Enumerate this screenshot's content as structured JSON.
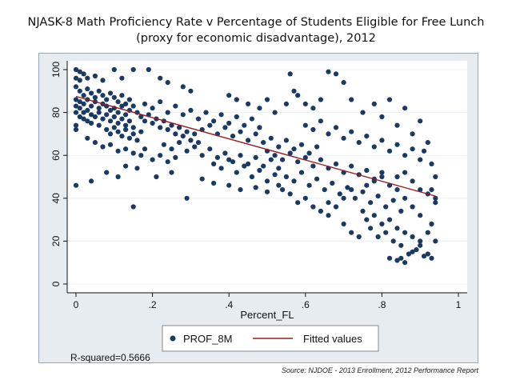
{
  "title_line1": "NJASK-8 Math Proficiency Rate v Percentage of Students Eligible for Free Lunch",
  "title_line2": "(proxy for economic disadvantage), 2012",
  "r_squared": "R-squared=0.5666",
  "source": "Source: NJDOE - 2013 Enrollment, 2012 Performance Report",
  "colors": {
    "panel_bg": "#e7ecf0",
    "plot_bg": "#ffffff",
    "marker": "#1a3a63",
    "fit_line": "#9b1c1c"
  },
  "chart_data": {
    "type": "scatter",
    "title": "NJASK-8 Math Proficiency Rate v Percentage of Students Eligible for Free Lunch (proxy for economic disadvantage), 2012",
    "xlabel": "Percent_FL",
    "ylabel": "",
    "xlim": [
      0,
      1
    ],
    "ylim": [
      0,
      100
    ],
    "xticks": [
      0,
      0.2,
      0.4,
      0.6,
      0.8,
      1
    ],
    "xtick_labels": [
      "0",
      ".2",
      ".4",
      ".6",
      ".8",
      "1"
    ],
    "yticks": [
      0,
      20,
      40,
      60,
      80,
      100
    ],
    "ytick_labels": [
      "0",
      "20",
      "40",
      "60",
      "80",
      "100"
    ],
    "grid": "horizontal",
    "legend_position": "bottom",
    "series": [
      {
        "name": "PROF_8M",
        "kind": "scatter",
        "points": [
          [
            0.0,
            100
          ],
          [
            0.01,
            99
          ],
          [
            0.02,
            98
          ],
          [
            0.0,
            96
          ],
          [
            0.01,
            95
          ],
          [
            0.03,
            96
          ],
          [
            0.05,
            97
          ],
          [
            0.07,
            95
          ],
          [
            0.1,
            100
          ],
          [
            0.12,
            96
          ],
          [
            0.15,
            100
          ],
          [
            0.19,
            100
          ],
          [
            0.22,
            96
          ],
          [
            0.24,
            94
          ],
          [
            0.28,
            92
          ],
          [
            0.3,
            90
          ],
          [
            0.0,
            92
          ],
          [
            0.01,
            90
          ],
          [
            0.02,
            88
          ],
          [
            0.03,
            91
          ],
          [
            0.04,
            89
          ],
          [
            0.05,
            87
          ],
          [
            0.06,
            90
          ],
          [
            0.07,
            88
          ],
          [
            0.08,
            86
          ],
          [
            0.09,
            89
          ],
          [
            0.1,
            87
          ],
          [
            0.11,
            85
          ],
          [
            0.12,
            88
          ],
          [
            0.13,
            84
          ],
          [
            0.14,
            86
          ],
          [
            0.15,
            83
          ],
          [
            0.0,
            86
          ],
          [
            0.01,
            85
          ],
          [
            0.02,
            84
          ],
          [
            0.03,
            86
          ],
          [
            0.04,
            83
          ],
          [
            0.05,
            85
          ],
          [
            0.06,
            82
          ],
          [
            0.07,
            84
          ],
          [
            0.08,
            83
          ],
          [
            0.09,
            81
          ],
          [
            0.1,
            82
          ],
          [
            0.11,
            80
          ],
          [
            0.12,
            83
          ],
          [
            0.13,
            79
          ],
          [
            0.14,
            81
          ],
          [
            0.16,
            80
          ],
          [
            0.0,
            83
          ],
          [
            0.01,
            82
          ],
          [
            0.02,
            80
          ],
          [
            0.03,
            81
          ],
          [
            0.04,
            79
          ],
          [
            0.05,
            78
          ],
          [
            0.06,
            80
          ],
          [
            0.07,
            77
          ],
          [
            0.08,
            79
          ],
          [
            0.09,
            76
          ],
          [
            0.1,
            78
          ],
          [
            0.11,
            75
          ],
          [
            0.12,
            77
          ],
          [
            0.13,
            74
          ],
          [
            0.14,
            76
          ],
          [
            0.15,
            73
          ],
          [
            0.0,
            80
          ],
          [
            0.01,
            78
          ],
          [
            0.02,
            77
          ],
          [
            0.03,
            76
          ],
          [
            0.04,
            75
          ],
          [
            0.06,
            74
          ],
          [
            0.08,
            72
          ],
          [
            0.09,
            70
          ],
          [
            0.1,
            73
          ],
          [
            0.11,
            71
          ],
          [
            0.12,
            69
          ],
          [
            0.13,
            72
          ],
          [
            0.14,
            68
          ],
          [
            0.15,
            70
          ],
          [
            0.16,
            67
          ],
          [
            0.17,
            71
          ],
          [
            0.0,
            74
          ],
          [
            0.0,
            72
          ],
          [
            0.0,
            46
          ],
          [
            0.03,
            68
          ],
          [
            0.05,
            66
          ],
          [
            0.07,
            64
          ],
          [
            0.09,
            65
          ],
          [
            0.11,
            62
          ],
          [
            0.13,
            63
          ],
          [
            0.15,
            61
          ],
          [
            0.17,
            60
          ],
          [
            0.18,
            63
          ],
          [
            0.2,
            58
          ],
          [
            0.22,
            60
          ],
          [
            0.24,
            57
          ],
          [
            0.26,
            59
          ],
          [
            0.04,
            48
          ],
          [
            0.08,
            52
          ],
          [
            0.11,
            50
          ],
          [
            0.13,
            55
          ],
          [
            0.16,
            54
          ],
          [
            0.15,
            36
          ],
          [
            0.21,
            50
          ],
          [
            0.25,
            52
          ],
          [
            0.29,
            40
          ],
          [
            0.33,
            49
          ],
          [
            0.36,
            47
          ],
          [
            0.4,
            46
          ],
          [
            0.43,
            44
          ],
          [
            0.47,
            45
          ],
          [
            0.5,
            43
          ],
          [
            0.53,
            46
          ],
          [
            0.17,
            78
          ],
          [
            0.18,
            76
          ],
          [
            0.19,
            79
          ],
          [
            0.2,
            75
          ],
          [
            0.21,
            77
          ],
          [
            0.22,
            73
          ],
          [
            0.23,
            76
          ],
          [
            0.24,
            72
          ],
          [
            0.25,
            74
          ],
          [
            0.26,
            70
          ],
          [
            0.27,
            73
          ],
          [
            0.28,
            69
          ],
          [
            0.29,
            71
          ],
          [
            0.3,
            67
          ],
          [
            0.31,
            70
          ],
          [
            0.32,
            66
          ],
          [
            0.18,
            84
          ],
          [
            0.2,
            82
          ],
          [
            0.22,
            85
          ],
          [
            0.24,
            80
          ],
          [
            0.26,
            83
          ],
          [
            0.28,
            79
          ],
          [
            0.3,
            81
          ],
          [
            0.32,
            77
          ],
          [
            0.34,
            80
          ],
          [
            0.36,
            76
          ],
          [
            0.38,
            79
          ],
          [
            0.4,
            75
          ],
          [
            0.42,
            78
          ],
          [
            0.44,
            74
          ],
          [
            0.46,
            77
          ],
          [
            0.48,
            73
          ],
          [
            0.23,
            65
          ],
          [
            0.25,
            63
          ],
          [
            0.27,
            66
          ],
          [
            0.29,
            62
          ],
          [
            0.31,
            64
          ],
          [
            0.33,
            60
          ],
          [
            0.35,
            63
          ],
          [
            0.37,
            59
          ],
          [
            0.39,
            61
          ],
          [
            0.41,
            57
          ],
          [
            0.43,
            60
          ],
          [
            0.45,
            56
          ],
          [
            0.47,
            59
          ],
          [
            0.49,
            55
          ],
          [
            0.51,
            58
          ],
          [
            0.53,
            54
          ],
          [
            0.33,
            72
          ],
          [
            0.35,
            74
          ],
          [
            0.37,
            70
          ],
          [
            0.39,
            73
          ],
          [
            0.41,
            69
          ],
          [
            0.43,
            71
          ],
          [
            0.45,
            67
          ],
          [
            0.47,
            70
          ],
          [
            0.49,
            66
          ],
          [
            0.51,
            68
          ],
          [
            0.53,
            64
          ],
          [
            0.55,
            67
          ],
          [
            0.57,
            63
          ],
          [
            0.59,
            65
          ],
          [
            0.61,
            61
          ],
          [
            0.63,
            64
          ],
          [
            0.4,
            88
          ],
          [
            0.42,
            86
          ],
          [
            0.45,
            84
          ],
          [
            0.48,
            82
          ],
          [
            0.5,
            86
          ],
          [
            0.52,
            80
          ],
          [
            0.55,
            84
          ],
          [
            0.56,
            98
          ],
          [
            0.57,
            90
          ],
          [
            0.58,
            88
          ],
          [
            0.6,
            84
          ],
          [
            0.62,
            82
          ],
          [
            0.64,
            86
          ],
          [
            0.66,
            99
          ],
          [
            0.68,
            98
          ],
          [
            0.7,
            94
          ],
          [
            0.5,
            62
          ],
          [
            0.52,
            60
          ],
          [
            0.54,
            58
          ],
          [
            0.56,
            61
          ],
          [
            0.58,
            57
          ],
          [
            0.6,
            59
          ],
          [
            0.62,
            55
          ],
          [
            0.64,
            58
          ],
          [
            0.66,
            54
          ],
          [
            0.68,
            56
          ],
          [
            0.7,
            52
          ],
          [
            0.72,
            55
          ],
          [
            0.74,
            51
          ],
          [
            0.76,
            53
          ],
          [
            0.78,
            49
          ],
          [
            0.8,
            52
          ],
          [
            0.55,
            50
          ],
          [
            0.57,
            48
          ],
          [
            0.59,
            52
          ],
          [
            0.61,
            46
          ],
          [
            0.63,
            49
          ],
          [
            0.65,
            44
          ],
          [
            0.67,
            47
          ],
          [
            0.69,
            42
          ],
          [
            0.71,
            45
          ],
          [
            0.73,
            40
          ],
          [
            0.75,
            43
          ],
          [
            0.77,
            38
          ],
          [
            0.79,
            41
          ],
          [
            0.81,
            36
          ],
          [
            0.83,
            39
          ],
          [
            0.85,
            34
          ],
          [
            0.6,
            74
          ],
          [
            0.62,
            72
          ],
          [
            0.64,
            76
          ],
          [
            0.66,
            70
          ],
          [
            0.68,
            73
          ],
          [
            0.7,
            68
          ],
          [
            0.72,
            71
          ],
          [
            0.74,
            66
          ],
          [
            0.76,
            69
          ],
          [
            0.78,
            64
          ],
          [
            0.8,
            67
          ],
          [
            0.82,
            62
          ],
          [
            0.84,
            65
          ],
          [
            0.86,
            60
          ],
          [
            0.88,
            63
          ],
          [
            0.9,
            58
          ],
          [
            0.72,
            86
          ],
          [
            0.75,
            80
          ],
          [
            0.78,
            84
          ],
          [
            0.8,
            78
          ],
          [
            0.82,
            86
          ],
          [
            0.84,
            74
          ],
          [
            0.86,
            82
          ],
          [
            0.88,
            70
          ],
          [
            0.9,
            76
          ],
          [
            0.91,
            62
          ],
          [
            0.92,
            66
          ],
          [
            0.93,
            56
          ],
          [
            0.94,
            50
          ],
          [
            0.93,
            44
          ],
          [
            0.94,
            38
          ],
          [
            0.92,
            42
          ],
          [
            0.75,
            34
          ],
          [
            0.76,
            30
          ],
          [
            0.77,
            26
          ],
          [
            0.78,
            32
          ],
          [
            0.79,
            22
          ],
          [
            0.8,
            28
          ],
          [
            0.81,
            24
          ],
          [
            0.82,
            30
          ],
          [
            0.83,
            20
          ],
          [
            0.84,
            26
          ],
          [
            0.85,
            18
          ],
          [
            0.86,
            24
          ],
          [
            0.87,
            14
          ],
          [
            0.88,
            22
          ],
          [
            0.89,
            16
          ],
          [
            0.9,
            20
          ],
          [
            0.82,
            12
          ],
          [
            0.84,
            11
          ],
          [
            0.85,
            12
          ],
          [
            0.86,
            10
          ],
          [
            0.88,
            15
          ],
          [
            0.9,
            18
          ],
          [
            0.91,
            13
          ],
          [
            0.92,
            14
          ],
          [
            0.93,
            12
          ],
          [
            0.94,
            20
          ],
          [
            0.92,
            24
          ],
          [
            0.93,
            28
          ],
          [
            0.9,
            32
          ],
          [
            0.88,
            36
          ],
          [
            0.86,
            40
          ],
          [
            0.84,
            44
          ],
          [
            0.66,
            32
          ],
          [
            0.7,
            28
          ],
          [
            0.72,
            24
          ],
          [
            0.74,
            22
          ],
          [
            0.68,
            36
          ],
          [
            0.7,
            40
          ],
          [
            0.72,
            44
          ],
          [
            0.76,
            46
          ],
          [
            0.78,
            48
          ],
          [
            0.8,
            50
          ],
          [
            0.82,
            46
          ],
          [
            0.84,
            50
          ],
          [
            0.86,
            52
          ],
          [
            0.88,
            48
          ],
          [
            0.9,
            44
          ],
          [
            0.94,
            40
          ],
          [
            0.36,
            56
          ],
          [
            0.38,
            54
          ],
          [
            0.4,
            58
          ],
          [
            0.42,
            52
          ],
          [
            0.44,
            55
          ],
          [
            0.46,
            50
          ],
          [
            0.48,
            53
          ],
          [
            0.5,
            48
          ],
          [
            0.52,
            51
          ],
          [
            0.54,
            44
          ],
          [
            0.56,
            42
          ],
          [
            0.58,
            38
          ],
          [
            0.6,
            40
          ],
          [
            0.62,
            36
          ],
          [
            0.64,
            34
          ],
          [
            0.66,
            38
          ]
        ]
      },
      {
        "name": "Fitted values",
        "kind": "line",
        "points": [
          [
            0.0,
            87.5
          ],
          [
            0.94,
            41.0
          ]
        ]
      }
    ]
  }
}
